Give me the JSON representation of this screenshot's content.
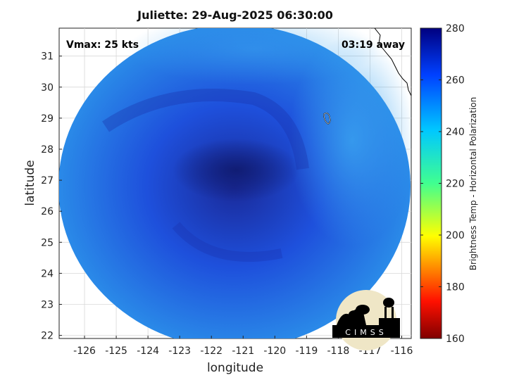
{
  "title": "Juliette: 29-Aug-2025 06:30:00",
  "annotations": {
    "vmax": "Vmax: 25 kts",
    "time_away": "03:19 away"
  },
  "axes": {
    "xlabel": "longitude",
    "ylabel": "latitude"
  },
  "colorbar": {
    "label": "Brightness Temp - Horizontal Polarization",
    "range": [
      160,
      280
    ],
    "ticks": [
      "280",
      "260",
      "240",
      "220",
      "200",
      "180",
      "160"
    ]
  },
  "map": {
    "lon_range": [
      -126.8,
      -115.7
    ],
    "lat_range": [
      21.9,
      31.9
    ],
    "lon_ticks": [
      "-126",
      "-125",
      "-124",
      "-123",
      "-122",
      "-121",
      "-120",
      "-119",
      "-118",
      "-117",
      "-116"
    ],
    "lat_ticks": [
      "31",
      "30",
      "29",
      "28",
      "27",
      "26",
      "25",
      "24",
      "23",
      "22"
    ],
    "storm_center": {
      "lon": -121.0,
      "lat": 27.1
    },
    "swath_colors": {
      "core": "#1a2a9a",
      "body": "#1e50dc",
      "edge": "#2a8ae8"
    }
  },
  "logo": {
    "text": "CIMSS"
  }
}
